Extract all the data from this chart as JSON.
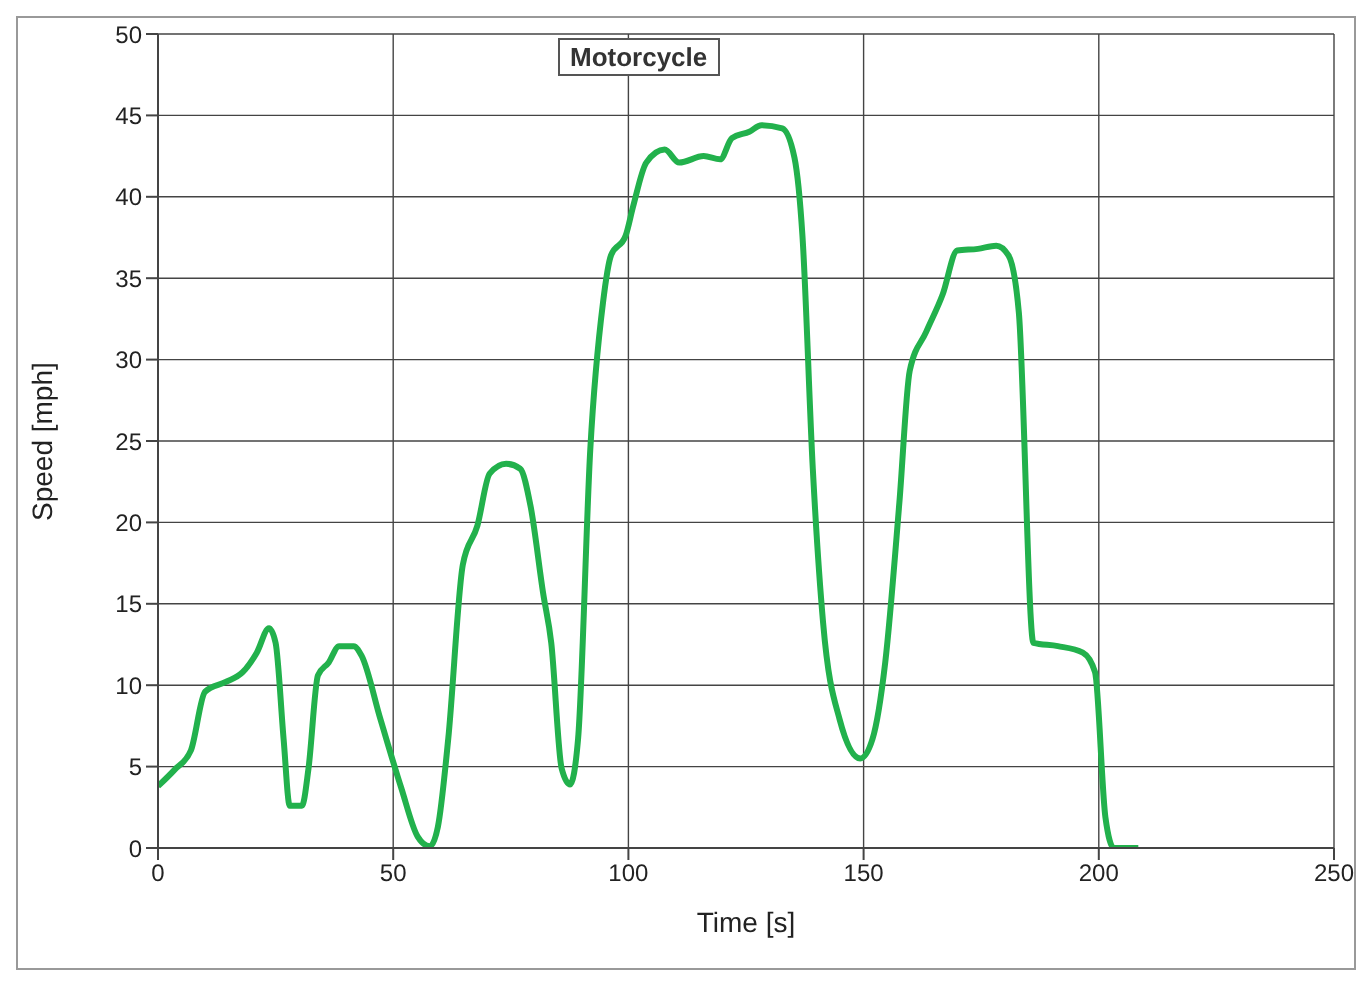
{
  "chart_data": {
    "type": "line",
    "title": "Motorcycle",
    "xlabel": "Time [s]",
    "ylabel": "Speed [mph]",
    "x": [
      0,
      3.5,
      7,
      10,
      14.4,
      18,
      21,
      23.6,
      25,
      26.7,
      28,
      30.6,
      32,
      34,
      36.3,
      38.5,
      41.6,
      43.3,
      47.3,
      51.7,
      55.2,
      57.8,
      59.5,
      61.7,
      64.8,
      67.9,
      70.5,
      74,
      77,
      79.2,
      81.9,
      83.6,
      85.8,
      87.6,
      89.3,
      91.9,
      94.6,
      96.3,
      99.4,
      101,
      103.8,
      107.7,
      110.8,
      116,
      119.5,
      122,
      125.7,
      128.3,
      132.7,
      135.3,
      137,
      139.2,
      141.4,
      144.9,
      149.3,
      151.9,
      154.6,
      157.6,
      159.8,
      163.3,
      166.8,
      169.9,
      174.3,
      178.2,
      180.8,
      183,
      186.1,
      191.3,
      196.6,
      199.2,
      201.4,
      203.2,
      208.4
    ],
    "series": [
      {
        "color": "#22b14c",
        "values": [
          3.8,
          4.8,
          6,
          9.6,
          10.2,
          10.8,
          12,
          13.5,
          12.6,
          6.7,
          2.6,
          2.6,
          4.9,
          10.6,
          11.4,
          12.4,
          12.4,
          11.8,
          7.9,
          3.7,
          0.7,
          0.1,
          1.3,
          6.7,
          17.4,
          19.8,
          23,
          23.6,
          23.3,
          21,
          15.6,
          12.6,
          4.9,
          3.9,
          6.7,
          24.5,
          33.5,
          36.4,
          37.6,
          39.4,
          42.1,
          42.9,
          42.1,
          42.5,
          42.3,
          43.6,
          44,
          44.4,
          44.2,
          42.4,
          37.6,
          23.3,
          13.8,
          7.9,
          5.5,
          6.7,
          11.4,
          21.2,
          29.3,
          31.7,
          34,
          36.7,
          36.8,
          37,
          36.4,
          32.9,
          12.6,
          12.4,
          12,
          10.8,
          1.9,
          0,
          0
        ]
      }
    ],
    "xlim": [
      0,
      250
    ],
    "xticks": [
      0,
      50,
      100,
      150,
      200,
      250
    ],
    "ylim": [
      0,
      50
    ],
    "yticks": [
      0,
      5,
      10,
      15,
      20,
      25,
      30,
      35,
      40,
      45,
      50
    ],
    "grid": true,
    "marker": "none",
    "line_style": "solid",
    "legend": false
  }
}
